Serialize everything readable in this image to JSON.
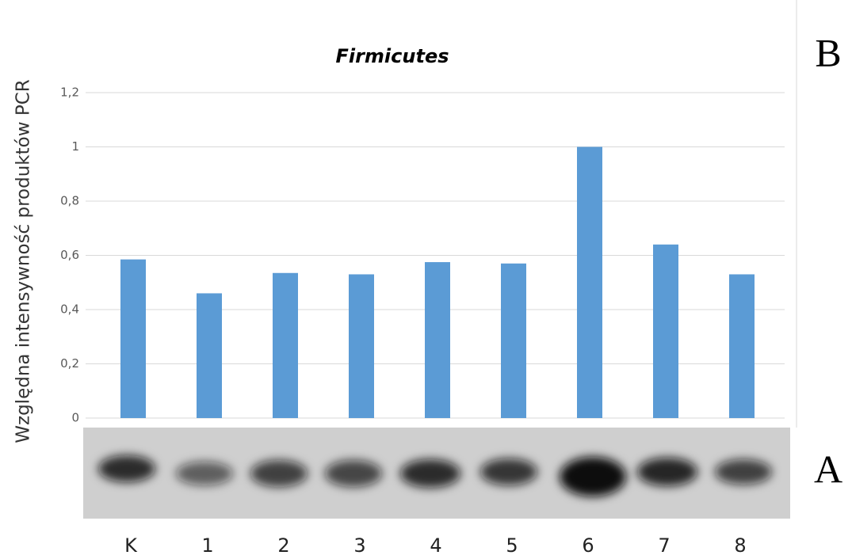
{
  "chart_data": {
    "type": "bar",
    "title": "Firmicutes",
    "y_label": "Względna intensywność produktów PCR",
    "panel_labels": [
      "B",
      "A"
    ],
    "categories": [
      "K",
      "1",
      "2",
      "3",
      "4",
      "5",
      "6",
      "7",
      "8"
    ],
    "values": [
      0.585,
      0.46,
      0.535,
      0.53,
      0.575,
      0.57,
      1.0,
      0.64,
      0.53
    ],
    "color": "#5b9bd5",
    "ylim": [
      0,
      1.2
    ],
    "yticks": [
      0,
      {
        "value": 0.2,
        "label": "0,2"
      },
      {
        "value": 0.4,
        "label": "0,4"
      },
      {
        "value": 0.6,
        "label": "0,6"
      },
      {
        "value": 0.8,
        "label": "0,8"
      },
      1,
      {
        "value": 1.2,
        "label": "1,2"
      }
    ],
    "grid": true
  }
}
